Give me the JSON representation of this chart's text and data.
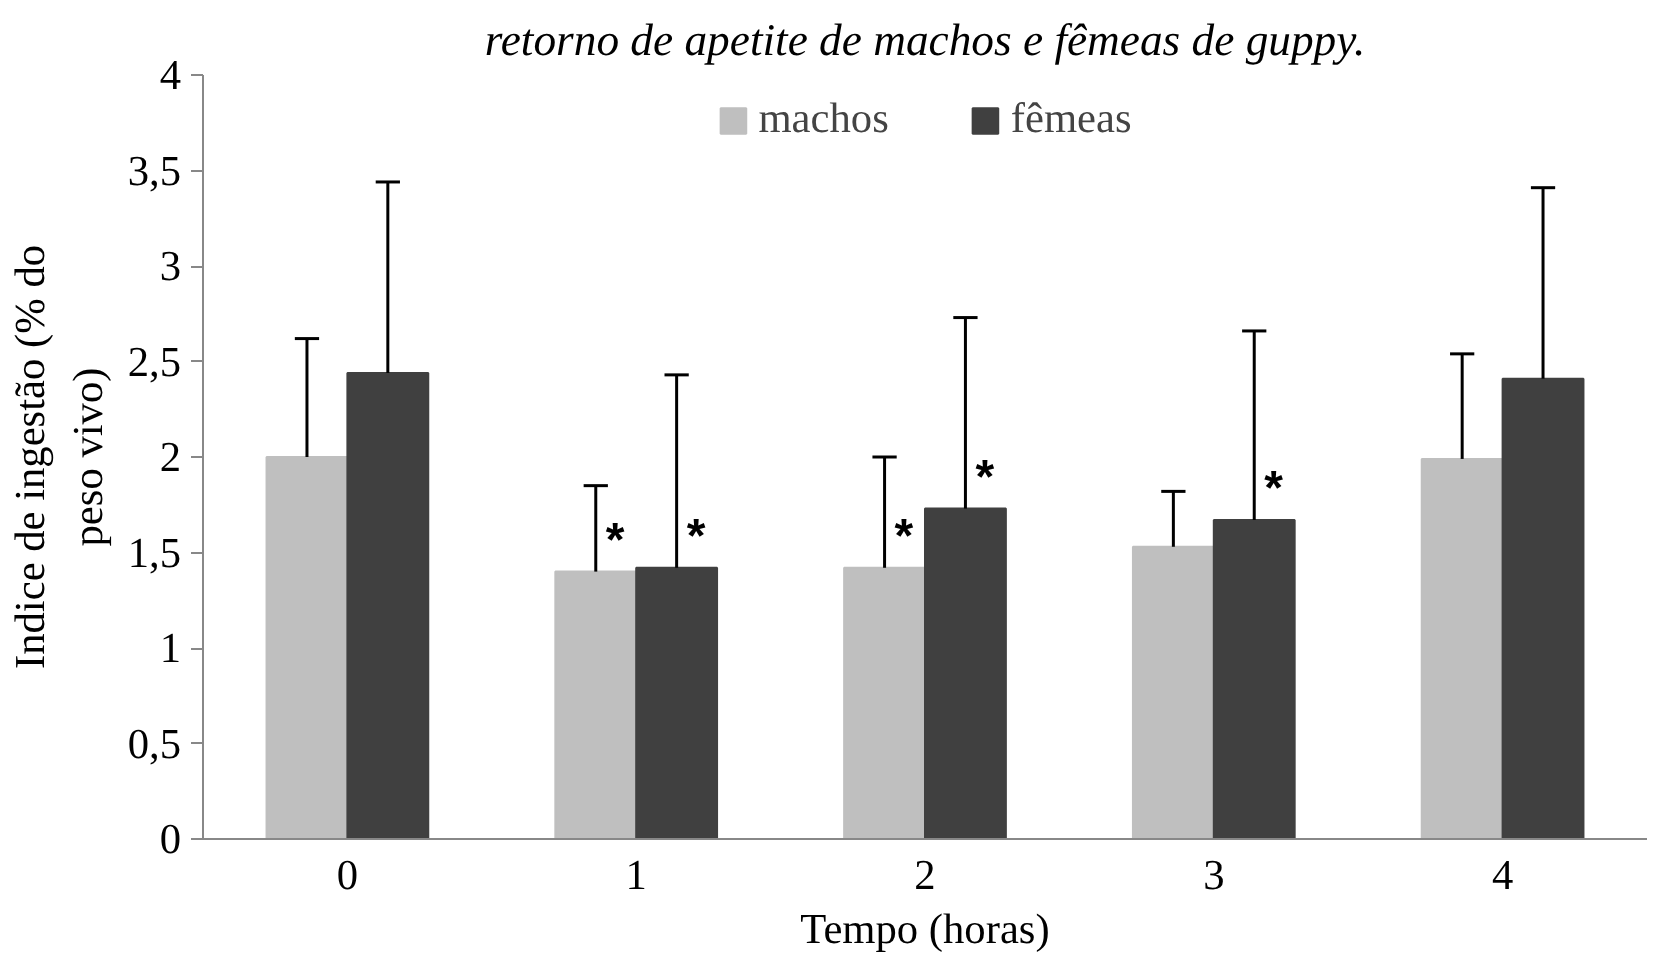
{
  "chart_data": {
    "type": "bar",
    "title": "retorno de apetite de machos e fêmeas de guppy.",
    "xlabel": "Tempo (horas)",
    "ylabel": "Indice de ingestão (% do peso vivo)",
    "categories": [
      "0",
      "1",
      "2",
      "3",
      "4"
    ],
    "series": [
      {
        "name": "machos",
        "color": "#bfbfbf",
        "values": [
          2.0,
          1.4,
          1.42,
          1.53,
          1.99
        ],
        "errors": [
          [
            2.0,
            2.62
          ],
          [
            1.4,
            1.85
          ],
          [
            1.42,
            2.0
          ],
          [
            1.53,
            1.82
          ],
          [
            1.99,
            2.54
          ]
        ],
        "value_labels": [
          null,
          "*",
          "*",
          null,
          null
        ]
      },
      {
        "name": "fêmeas",
        "color": "#404040",
        "values": [
          2.44,
          1.42,
          1.73,
          1.67,
          2.41
        ],
        "errors": [
          [
            2.44,
            3.44
          ],
          [
            1.42,
            2.43
          ],
          [
            1.73,
            2.73
          ],
          [
            1.67,
            2.66
          ],
          [
            2.41,
            3.41
          ]
        ],
        "value_labels": [
          null,
          "*",
          "*",
          "*",
          null
        ]
      }
    ],
    "ylim": [
      0,
      4
    ],
    "yticks": [
      0,
      {
        "value": 0.5,
        "label": "0,5"
      },
      1,
      {
        "value": 1.5,
        "label": "1,5"
      },
      2,
      {
        "value": 2.5,
        "label": "2,5"
      },
      3,
      {
        "value": 3.5,
        "label": "3,5"
      },
      4
    ],
    "legend": "top",
    "grid": false
  }
}
